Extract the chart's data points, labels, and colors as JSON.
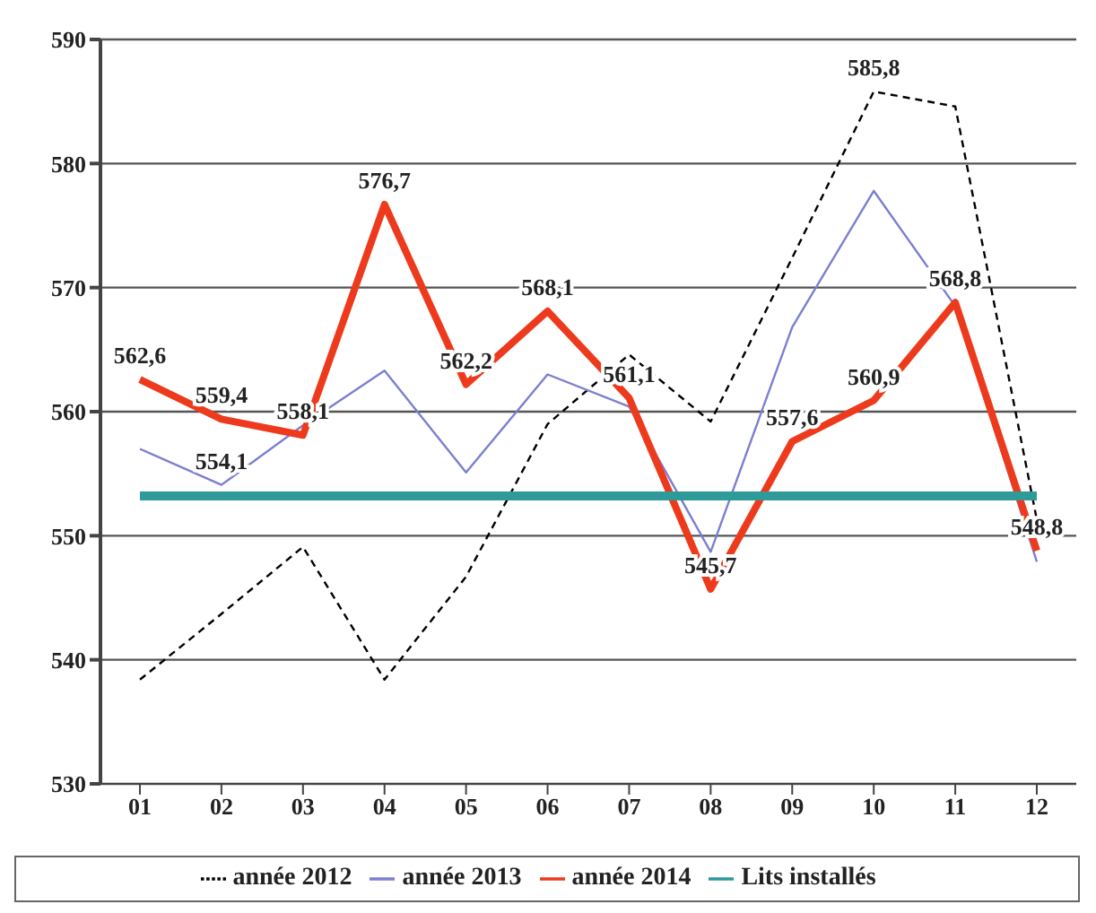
{
  "chart_data": {
    "type": "line",
    "categories": [
      "01",
      "02",
      "03",
      "04",
      "05",
      "06",
      "07",
      "08",
      "09",
      "10",
      "11",
      "12"
    ],
    "ylim": [
      530,
      590
    ],
    "yticks": [
      530,
      540,
      550,
      560,
      570,
      580,
      590
    ],
    "grid": "y",
    "legend": "bottom",
    "series": [
      {
        "name": "année 2012",
        "color": "#000000",
        "line_style": "dashed",
        "values": [
          538.4,
          543.7,
          549.1,
          538.4,
          546.7,
          559,
          564.6,
          559.2,
          572.4,
          585.8,
          584.6,
          551.3
        ],
        "value_labels": [
          null,
          null,
          null,
          null,
          null,
          null,
          null,
          null,
          null,
          "585,8",
          null,
          null
        ]
      },
      {
        "name": "année 2013",
        "color": "#7b7fd0",
        "values": [
          557,
          554.1,
          558.9,
          563.3,
          555.1,
          563,
          560.4,
          548.7,
          566.8,
          577.8,
          568.5,
          547.9
        ],
        "value_labels": [
          null,
          "554,1",
          null,
          null,
          null,
          null,
          null,
          null,
          null,
          null,
          null,
          null
        ]
      },
      {
        "name": "année 2014",
        "color": "#ee3a1c",
        "values": [
          562.6,
          559.4,
          558.1,
          576.7,
          562.2,
          568.1,
          561.1,
          545.7,
          557.6,
          560.9,
          568.8,
          548.8
        ],
        "value_labels": [
          "562,6",
          "559,4",
          "558,1",
          "576,7",
          "562,2",
          "568,1",
          "561,1",
          "545,7",
          "557,6",
          "560,9",
          "568,8",
          "548,8"
        ]
      },
      {
        "name": "Lits installés",
        "color": "#2e9a9a",
        "values": [
          553.2,
          553.2,
          553.2,
          553.2,
          553.2,
          553.2,
          553.2,
          553.2,
          553.2,
          553.2,
          553.2,
          553.2
        ]
      }
    ]
  }
}
